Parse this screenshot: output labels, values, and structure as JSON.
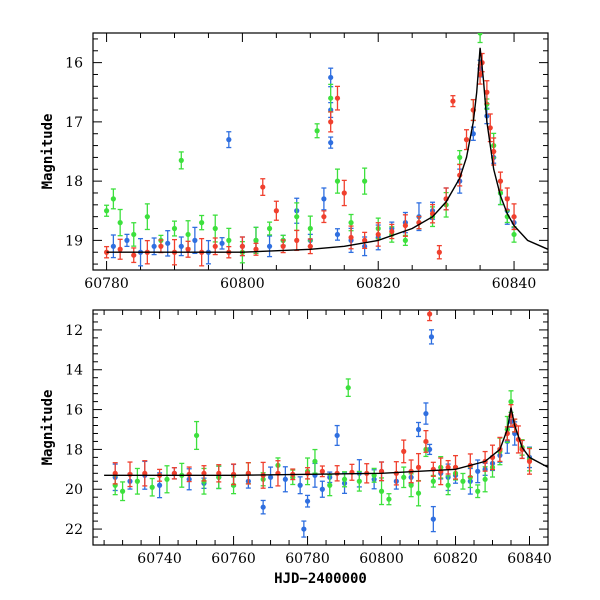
{
  "chart_data": [
    {
      "type": "scatter",
      "title": "",
      "xlabel": "",
      "ylabel": "Magnitude",
      "xlim": [
        60778,
        60845
      ],
      "ylim": [
        19.5,
        15.5
      ],
      "inverted_y": true,
      "xticks": [
        "60780",
        "60800",
        "60820",
        "60840"
      ],
      "yticks": [
        "16",
        "17",
        "18",
        "19"
      ],
      "xtick_values": [
        60780,
        60800,
        60820,
        60840
      ],
      "ytick_values": [
        16,
        17,
        18,
        19
      ],
      "grid": false,
      "series": [
        {
          "color": "#2f6fe0",
          "points": [
            [
              60781,
              19.1
            ],
            [
              60783,
              19.0
            ],
            [
              60785,
              19.2
            ],
            [
              60787,
              19.1
            ],
            [
              60789,
              19.05
            ],
            [
              60791,
              19.1
            ],
            [
              60793,
              19.0
            ],
            [
              60795,
              19.2
            ],
            [
              60797,
              19.05
            ],
            [
              60798,
              17.3
            ],
            [
              60800,
              19.1
            ],
            [
              60802,
              19.0
            ],
            [
              60804,
              19.1
            ],
            [
              60806,
              19.0
            ],
            [
              60808,
              18.5
            ],
            [
              60810,
              19.0
            ],
            [
              60812,
              18.3
            ],
            [
              60813,
              16.25
            ],
            [
              60813,
              16.8
            ],
            [
              60813,
              17.35
            ],
            [
              60814,
              18.9
            ],
            [
              60816,
              19.0
            ],
            [
              60818,
              19.1
            ],
            [
              60820,
              18.95
            ],
            [
              60822,
              18.8
            ],
            [
              60824,
              18.7
            ],
            [
              60826,
              18.6
            ],
            [
              60828,
              18.5
            ],
            [
              60830,
              18.3
            ],
            [
              60832,
              18.0
            ],
            [
              60834,
              17.2
            ],
            [
              60835,
              16.1
            ],
            [
              60836,
              16.9
            ],
            [
              60837,
              17.6
            ],
            [
              60838,
              18.2
            ],
            [
              60839,
              18.5
            ],
            [
              60840,
              18.7
            ]
          ]
        },
        {
          "color": "#3de03d",
          "points": [
            [
              60780,
              18.5
            ],
            [
              60781,
              18.3
            ],
            [
              60782,
              18.7
            ],
            [
              60784,
              18.9
            ],
            [
              60786,
              18.6
            ],
            [
              60788,
              19.0
            ],
            [
              60790,
              18.8
            ],
            [
              60791,
              17.65
            ],
            [
              60792,
              18.9
            ],
            [
              60794,
              18.7
            ],
            [
              60796,
              18.8
            ],
            [
              60798,
              19.0
            ],
            [
              60800,
              19.2
            ],
            [
              60802,
              19.0
            ],
            [
              60804,
              18.8
            ],
            [
              60806,
              19.0
            ],
            [
              60808,
              18.6
            ],
            [
              60810,
              18.8
            ],
            [
              60811,
              17.15
            ],
            [
              60813,
              16.6
            ],
            [
              60814,
              18.0
            ],
            [
              60816,
              18.7
            ],
            [
              60818,
              18.0
            ],
            [
              60820,
              18.8
            ],
            [
              60822,
              18.9
            ],
            [
              60824,
              19.0
            ],
            [
              60826,
              18.7
            ],
            [
              60828,
              18.6
            ],
            [
              60830,
              18.4
            ],
            [
              60832,
              17.6
            ],
            [
              60834,
              16.8
            ],
            [
              60835,
              15.5
            ],
            [
              60836,
              16.7
            ],
            [
              60837,
              17.4
            ],
            [
              60838,
              18.2
            ],
            [
              60839,
              18.6
            ],
            [
              60840,
              18.9
            ]
          ]
        },
        {
          "color": "#f0402e",
          "points": [
            [
              60780,
              19.2
            ],
            [
              60782,
              19.15
            ],
            [
              60784,
              19.25
            ],
            [
              60786,
              19.2
            ],
            [
              60788,
              19.1
            ],
            [
              60790,
              19.2
            ],
            [
              60792,
              19.15
            ],
            [
              60794,
              19.2
            ],
            [
              60796,
              19.1
            ],
            [
              60798,
              19.2
            ],
            [
              60800,
              19.1
            ],
            [
              60802,
              19.15
            ],
            [
              60803,
              18.1
            ],
            [
              60805,
              18.5
            ],
            [
              60806,
              19.1
            ],
            [
              60808,
              19.0
            ],
            [
              60810,
              19.1
            ],
            [
              60812,
              18.6
            ],
            [
              60813,
              17.0
            ],
            [
              60814,
              16.6
            ],
            [
              60815,
              18.2
            ],
            [
              60816,
              18.95
            ],
            [
              60818,
              19.0
            ],
            [
              60820,
              18.9
            ],
            [
              60822,
              18.85
            ],
            [
              60824,
              18.75
            ],
            [
              60826,
              18.7
            ],
            [
              60828,
              18.55
            ],
            [
              60829,
              19.2
            ],
            [
              60830,
              18.3
            ],
            [
              60831,
              16.65
            ],
            [
              60832,
              17.9
            ],
            [
              60833,
              17.3
            ],
            [
              60834,
              16.8
            ],
            [
              60835,
              16.2
            ],
            [
              60835.3,
              16.0
            ],
            [
              60836,
              16.5
            ],
            [
              60836.5,
              17.1
            ],
            [
              60837,
              17.5
            ],
            [
              60838,
              18.0
            ],
            [
              60839,
              18.3
            ],
            [
              60840,
              18.6
            ]
          ]
        }
      ],
      "model_curve": {
        "color": "#000000",
        "x": [
          60780,
          60790,
          60800,
          60810,
          60815,
          60820,
          60825,
          60828,
          60830,
          60832,
          60833,
          60834,
          60834.5,
          60835,
          60835.5,
          60836,
          60837,
          60838,
          60839,
          60840,
          60842,
          60845
        ],
        "y": [
          19.2,
          19.2,
          19.2,
          19.15,
          19.1,
          19.0,
          18.8,
          18.6,
          18.35,
          17.95,
          17.6,
          17.0,
          16.5,
          15.75,
          16.3,
          17.0,
          17.8,
          18.25,
          18.55,
          18.75,
          19.0,
          19.15
        ]
      }
    },
    {
      "type": "scatter",
      "title": "",
      "xlabel": "HJD−2400000",
      "ylabel": "Magnitude",
      "xlim": [
        60722,
        60845
      ],
      "ylim": [
        22.8,
        11.0
      ],
      "inverted_y": true,
      "xticks": [
        "60740",
        "60760",
        "60780",
        "60800",
        "60820",
        "60840"
      ],
      "yticks": [
        "12",
        "14",
        "16",
        "18",
        "20",
        "22"
      ],
      "xtick_values": [
        60740,
        60760,
        60780,
        60800,
        60820,
        60840
      ],
      "ytick_values": [
        12,
        14,
        16,
        18,
        20,
        22
      ],
      "grid": false,
      "series": [
        {
          "color": "#2f6fe0",
          "points": [
            [
              60728,
              19.4
            ],
            [
              60732,
              19.6
            ],
            [
              60736,
              19.3
            ],
            [
              60740,
              19.8
            ],
            [
              60744,
              19.2
            ],
            [
              60748,
              19.5
            ],
            [
              60752,
              19.7
            ],
            [
              60756,
              19.4
            ],
            [
              60760,
              19.3
            ],
            [
              60764,
              19.6
            ],
            [
              60768,
              20.9
            ],
            [
              60770,
              19.4
            ],
            [
              60774,
              19.5
            ],
            [
              60778,
              19.8
            ],
            [
              60780,
              20.6
            ],
            [
              60782,
              19.3
            ],
            [
              60784,
              20.0
            ],
            [
              60786,
              19.4
            ],
            [
              60788,
              17.3
            ],
            [
              60790,
              19.7
            ],
            [
              60794,
              19.2
            ],
            [
              60798,
              19.5
            ],
            [
              60800,
              19.1
            ],
            [
              60804,
              19.6
            ],
            [
              60808,
              19.4
            ],
            [
              60810,
              17.0
            ],
            [
              60812,
              16.2
            ],
            [
              60813,
              18.0
            ],
            [
              60813.5,
              12.35
            ],
            [
              60814,
              21.5
            ],
            [
              60816,
              19.2
            ],
            [
              60818,
              19.4
            ],
            [
              60820,
              19.3
            ],
            [
              60824,
              19.6
            ],
            [
              60826,
              19.1
            ],
            [
              60828,
              19.0
            ],
            [
              60830,
              18.7
            ],
            [
              60832,
              18.3
            ],
            [
              60834,
              17.6
            ],
            [
              60835,
              16.6
            ],
            [
              60836,
              17.2
            ],
            [
              60838,
              18.0
            ],
            [
              60840,
              18.4
            ],
            [
              60779,
              22.0
            ]
          ]
        },
        {
          "color": "#3de03d",
          "points": [
            [
              60728,
              19.8
            ],
            [
              60730,
              20.1
            ],
            [
              60734,
              19.6
            ],
            [
              60738,
              19.9
            ],
            [
              60742,
              19.5
            ],
            [
              60746,
              19.3
            ],
            [
              60750,
              17.3
            ],
            [
              60752,
              19.6
            ],
            [
              60756,
              19.4
            ],
            [
              60760,
              19.8
            ],
            [
              60764,
              19.2
            ],
            [
              60768,
              19.5
            ],
            [
              60772,
              18.8
            ],
            [
              60776,
              19.4
            ],
            [
              60780,
              19.1
            ],
            [
              60782,
              18.6
            ],
            [
              60786,
              19.8
            ],
            [
              60790,
              19.5
            ],
            [
              60791,
              14.9
            ],
            [
              60794,
              19.6
            ],
            [
              60798,
              19.3
            ],
            [
              60800,
              20.1
            ],
            [
              60802,
              20.5
            ],
            [
              60806,
              19.4
            ],
            [
              60808,
              19.8
            ],
            [
              60810,
              20.2
            ],
            [
              60812,
              18.0
            ],
            [
              60814,
              19.6
            ],
            [
              60816,
              18.9
            ],
            [
              60818,
              19.8
            ],
            [
              60820,
              19.2
            ],
            [
              60822,
              19.6
            ],
            [
              60824,
              19.4
            ],
            [
              60826,
              20.1
            ],
            [
              60828,
              19.5
            ],
            [
              60830,
              18.9
            ],
            [
              60832,
              18.1
            ],
            [
              60834,
              17.0
            ],
            [
              60835,
              15.6
            ],
            [
              60836,
              16.8
            ],
            [
              60838,
              17.9
            ],
            [
              60840,
              18.5
            ]
          ]
        },
        {
          "color": "#f0402e",
          "points": [
            [
              60728,
              19.2
            ],
            [
              60732,
              19.25
            ],
            [
              60736,
              19.2
            ],
            [
              60740,
              19.3
            ],
            [
              60744,
              19.2
            ],
            [
              60748,
              19.25
            ],
            [
              60752,
              19.2
            ],
            [
              60756,
              19.2
            ],
            [
              60760,
              19.25
            ],
            [
              60764,
              19.2
            ],
            [
              60768,
              19.3
            ],
            [
              60772,
              19.2
            ],
            [
              60776,
              19.25
            ],
            [
              60780,
              19.2
            ],
            [
              60784,
              19.1
            ],
            [
              60788,
              19.2
            ],
            [
              60792,
              19.15
            ],
            [
              60796,
              19.2
            ],
            [
              60800,
              19.1
            ],
            [
              60804,
              19.2
            ],
            [
              60806,
              18.1
            ],
            [
              60808,
              19.1
            ],
            [
              60810,
              18.9
            ],
            [
              60812,
              17.6
            ],
            [
              60813,
              11.2
            ],
            [
              60814,
              19.0
            ],
            [
              60816,
              19.1
            ],
            [
              60818,
              18.9
            ],
            [
              60820,
              18.9
            ],
            [
              60824,
              18.8
            ],
            [
              60828,
              18.6
            ],
            [
              60830,
              18.4
            ],
            [
              60832,
              18.0
            ],
            [
              60834,
              17.2
            ],
            [
              60835,
              16.3
            ],
            [
              60836,
              16.8
            ],
            [
              60837,
              17.5
            ],
            [
              60838,
              18.0
            ],
            [
              60840,
              18.6
            ]
          ]
        }
      ],
      "model_curve": {
        "color": "#000000",
        "x": [
          60725,
          60760,
          60800,
          60820,
          60828,
          60832,
          60834,
          60835,
          60836,
          60838,
          60840,
          60845
        ],
        "y": [
          19.3,
          19.3,
          19.2,
          19.0,
          18.6,
          18.0,
          17.0,
          15.9,
          16.8,
          17.9,
          18.4,
          18.9
        ]
      }
    }
  ]
}
